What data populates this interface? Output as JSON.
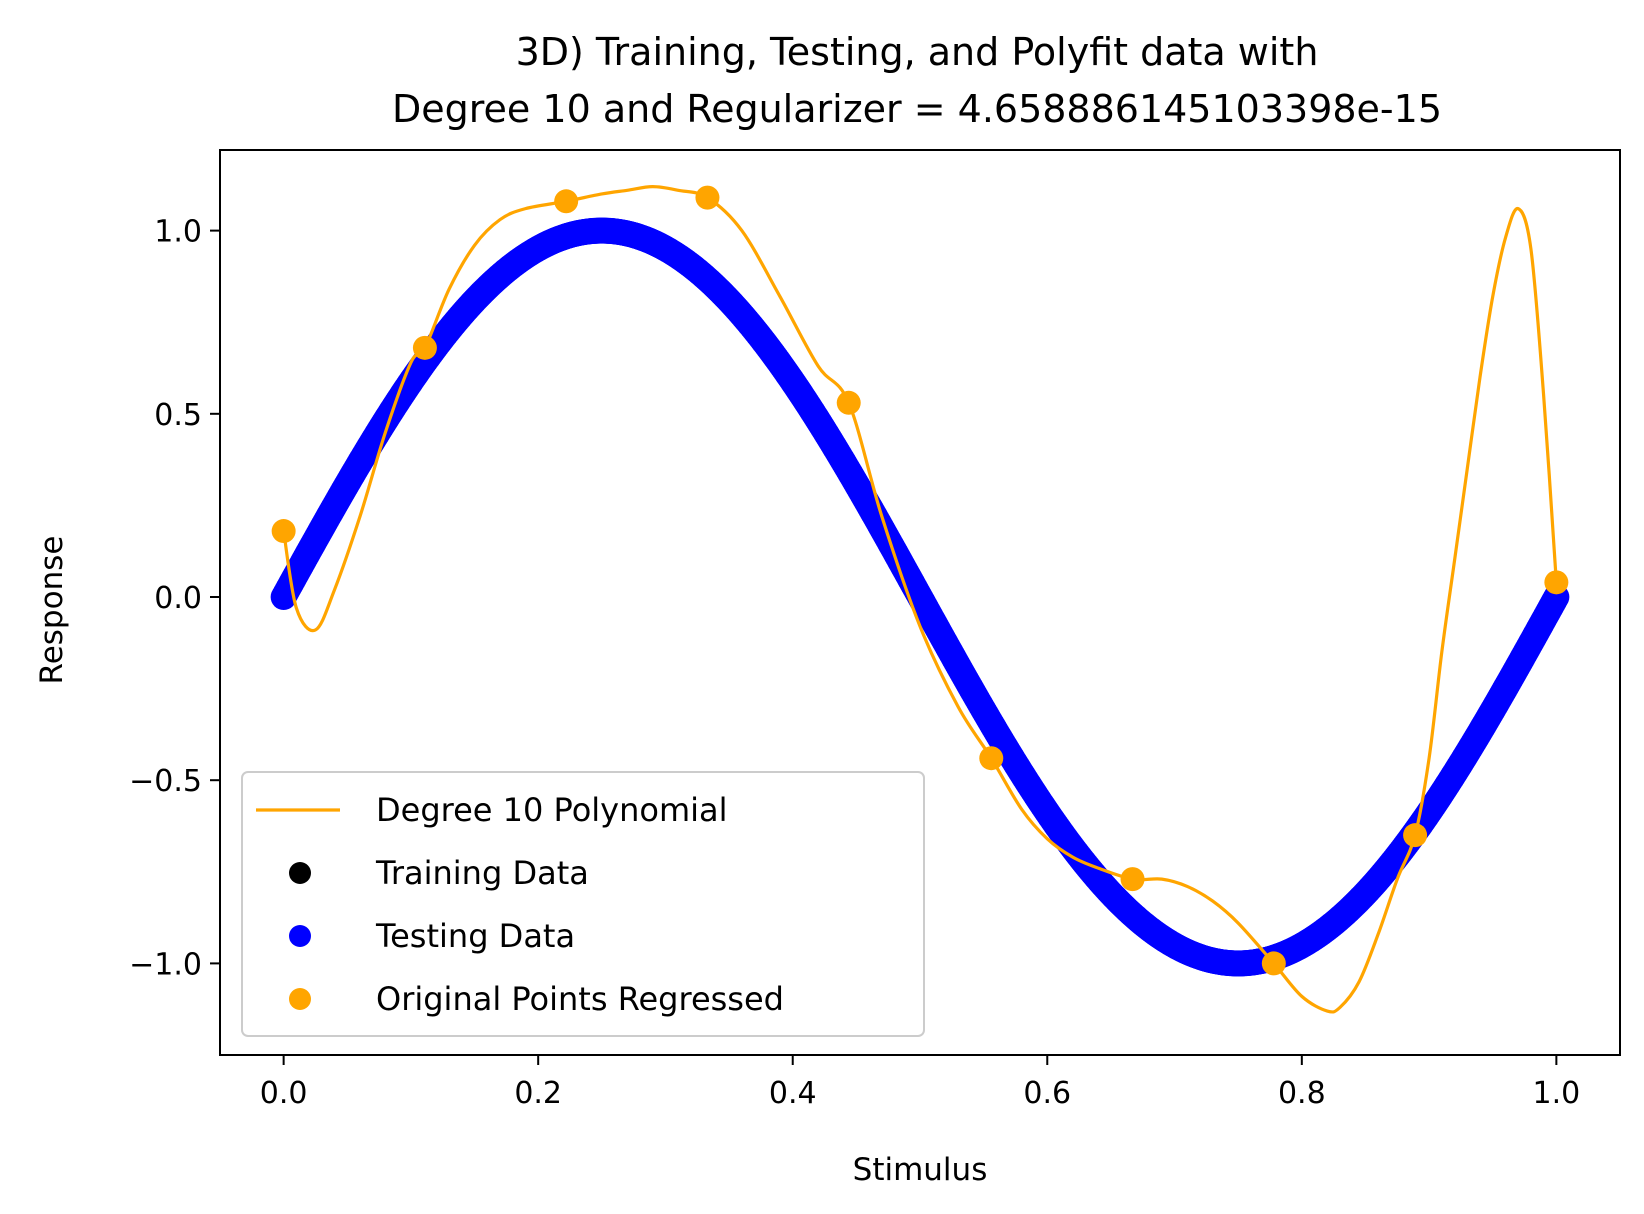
{
  "chart_data": {
    "type": "scatter",
    "title_lines": [
      "3D) Training, Testing, and Polyfit data with",
      "Degree 10 and Regularizer = 4.658886145103398e-15"
    ],
    "xlabel": "Stimulus",
    "ylabel": "Response",
    "xlim": [
      -0.05,
      1.05
    ],
    "ylim": [
      -1.25,
      1.22
    ],
    "xticks": [
      0.0,
      0.2,
      0.4,
      0.6,
      0.8,
      1.0
    ],
    "xtick_labels": [
      "0.0",
      "0.2",
      "0.4",
      "0.6",
      "0.8",
      "1.0"
    ],
    "yticks": [
      -1.0,
      -0.5,
      0.0,
      0.5,
      1.0
    ],
    "ytick_labels": [
      "−1.0",
      "−0.5",
      "0.0",
      "0.5",
      "1.0"
    ],
    "grid": false,
    "legend_position": "lower-left",
    "series": [
      {
        "name": "Degree 10 Polynomial",
        "kind": "line",
        "color": "#ffa500",
        "x": [
          0.0,
          0.01,
          0.025,
          0.04,
          0.06,
          0.08,
          0.1,
          0.111,
          0.13,
          0.15,
          0.17,
          0.19,
          0.222,
          0.25,
          0.27,
          0.29,
          0.31,
          0.333,
          0.36,
          0.39,
          0.42,
          0.444,
          0.47,
          0.5,
          0.53,
          0.556,
          0.58,
          0.6,
          0.62,
          0.64,
          0.667,
          0.69,
          0.71,
          0.73,
          0.75,
          0.778,
          0.8,
          0.82,
          0.83,
          0.845,
          0.86,
          0.875,
          0.889,
          0.9,
          0.91,
          0.92,
          0.93,
          0.94,
          0.95,
          0.96,
          0.97,
          0.98,
          0.99,
          1.0
        ],
        "y": [
          0.18,
          -0.03,
          -0.09,
          0.02,
          0.22,
          0.45,
          0.64,
          0.68,
          0.84,
          0.96,
          1.03,
          1.06,
          1.08,
          1.1,
          1.11,
          1.12,
          1.11,
          1.09,
          1.0,
          0.82,
          0.63,
          0.53,
          0.22,
          -0.08,
          -0.3,
          -0.44,
          -0.58,
          -0.66,
          -0.71,
          -0.74,
          -0.77,
          -0.77,
          -0.79,
          -0.83,
          -0.89,
          -1.0,
          -1.09,
          -1.13,
          -1.12,
          -1.05,
          -0.92,
          -0.77,
          -0.65,
          -0.44,
          -0.15,
          0.1,
          0.35,
          0.6,
          0.82,
          0.98,
          1.06,
          0.95,
          0.55,
          0.04
        ]
      },
      {
        "name": "Training Data",
        "kind": "scatter",
        "color": "#000000",
        "x": [],
        "y": []
      },
      {
        "name": "Testing Data",
        "kind": "scatter",
        "color": "#0000ff",
        "function": "sin(2*pi*x)",
        "x_range": [
          0.0,
          1.0
        ]
      },
      {
        "name": "Original Points Regressed",
        "kind": "scatter",
        "color": "#ffa500",
        "x": [
          0.0,
          0.111,
          0.222,
          0.333,
          0.444,
          0.556,
          0.667,
          0.778,
          0.889,
          1.0
        ],
        "y": [
          0.18,
          0.68,
          1.08,
          1.09,
          0.53,
          -0.44,
          -0.77,
          -1.0,
          -0.65,
          0.04
        ]
      }
    ]
  }
}
